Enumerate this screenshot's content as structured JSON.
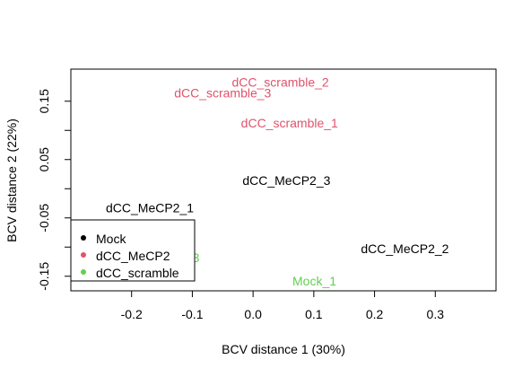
{
  "chart_data": {
    "type": "scatter",
    "title": "",
    "xlabel": "BCV distance 1 (30%)",
    "ylabel": "BCV distance 2 (22%)",
    "xlim": [
      -0.3,
      0.4
    ],
    "ylim": [
      -0.175,
      0.205
    ],
    "xticks": [
      {
        "v": -0.2,
        "label": "-0.2"
      },
      {
        "v": -0.1,
        "label": "-0.1"
      },
      {
        "v": 0.0,
        "label": "0.0"
      },
      {
        "v": 0.1,
        "label": "0.1"
      },
      {
        "v": 0.2,
        "label": "0.2"
      },
      {
        "v": 0.3,
        "label": "0.3"
      }
    ],
    "yticks": [
      {
        "v": -0.15,
        "label": "-0.15",
        "labeled": true
      },
      {
        "v": -0.1,
        "label": "",
        "labeled": false
      },
      {
        "v": -0.05,
        "label": "-0.05",
        "labeled": true
      },
      {
        "v": 0.0,
        "label": "",
        "labeled": false
      },
      {
        "v": 0.05,
        "label": "0.05",
        "labeled": true
      },
      {
        "v": 0.1,
        "label": "",
        "labeled": false
      },
      {
        "v": 0.15,
        "label": "0.15",
        "labeled": true
      }
    ],
    "grid": false,
    "legend_position": "bottom-left",
    "series": [
      {
        "name": "Mock",
        "color": "#000000",
        "points": [
          {
            "label": "dCC_MeCP2_1",
            "x": -0.17,
            "y": -0.033
          },
          {
            "label": "dCC_MeCP2_2",
            "x": 0.25,
            "y": -0.103
          },
          {
            "label": "dCC_MeCP2_3",
            "x": 0.055,
            "y": 0.014
          }
        ]
      },
      {
        "name": "dCC_MeCP2",
        "color": "#DF536B",
        "points": [
          {
            "label": "dCC_scramble_1",
            "x": 0.06,
            "y": 0.113
          },
          {
            "label": "dCC_scramble_2",
            "x": 0.045,
            "y": 0.183
          },
          {
            "label": "dCC_scramble_3",
            "x": -0.05,
            "y": 0.164
          }
        ]
      },
      {
        "name": "dCC_scramble",
        "color": "#61D04F",
        "points": [
          {
            "label": "Mock_1",
            "x": 0.101,
            "y": -0.158
          },
          {
            "label": "3",
            "x": -0.094,
            "y": -0.118
          }
        ]
      }
    ]
  }
}
